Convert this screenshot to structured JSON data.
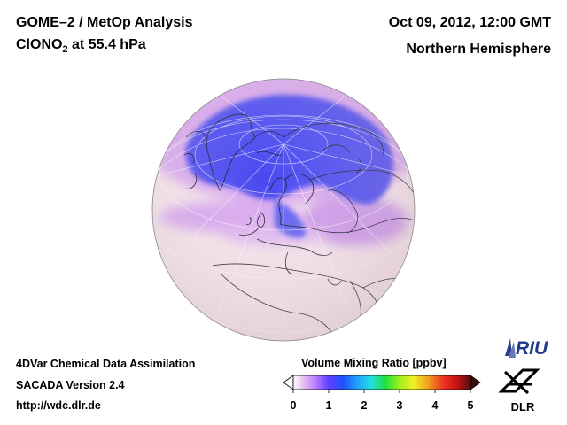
{
  "header": {
    "title": "GOME–2 / MetOp Analysis",
    "species": "ClONO",
    "species_subscript": "2",
    "level": "at 55.4 hPa",
    "datetime": "Oct 09, 2012, 12:00 GMT",
    "region": "Northern Hemisphere"
  },
  "footer": {
    "line1": "4DVar Chemical Data Assimilation",
    "line2": "SACADA Version 2.4",
    "line3": "http://wdc.dlr.de"
  },
  "colorbar": {
    "title": "Volume Mixing Ratio [ppbv]",
    "ticks": [
      "0",
      "1",
      "2",
      "3",
      "4",
      "5"
    ],
    "min": 0,
    "max": 5,
    "colors": [
      "#ffffff",
      "#e8c8f0",
      "#c080ff",
      "#6040ff",
      "#2050ff",
      "#20a0ff",
      "#20e0e0",
      "#20e040",
      "#a0f020",
      "#f0f020",
      "#f0a020",
      "#f03020",
      "#c01010",
      "#501010"
    ]
  },
  "logos": {
    "riu": "RIU",
    "dlr": "DLR"
  },
  "map": {
    "projection": "orthographic",
    "hemisphere": "Northern Hemisphere",
    "background_color": "#f4e4ea",
    "low_color": "#4848f0",
    "mid_color": "#c890e8"
  }
}
